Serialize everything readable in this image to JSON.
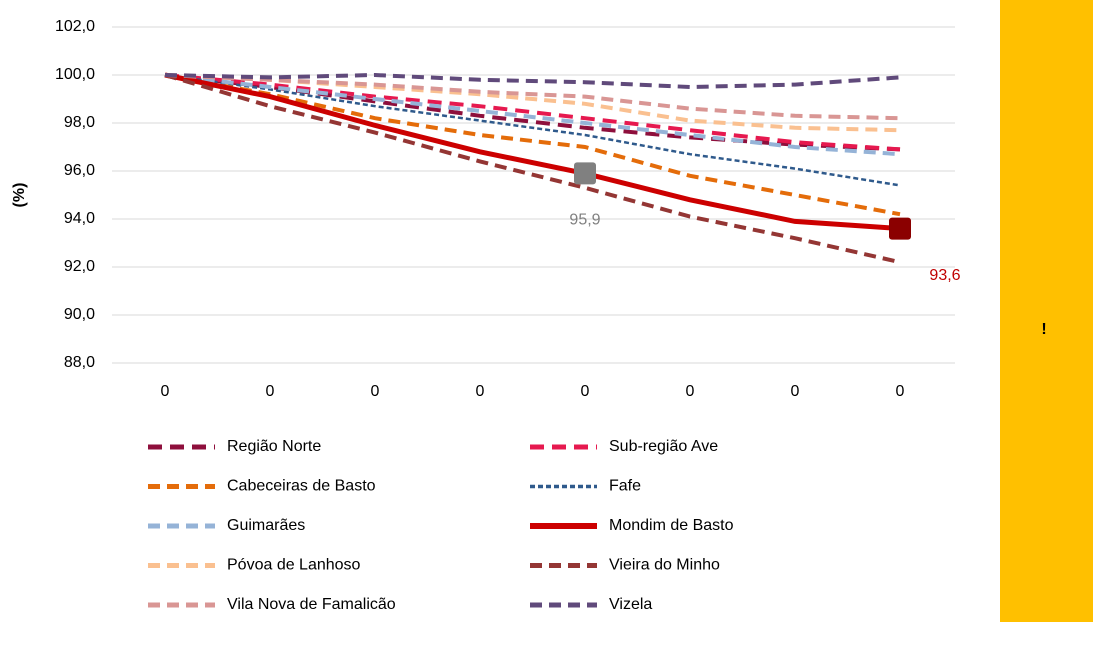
{
  "chart_data": {
    "type": "line",
    "y_label": "(%)",
    "categories": [
      "0",
      "0",
      "0",
      "0",
      "0",
      "0",
      "0",
      "0"
    ],
    "ylim": [
      88,
      102
    ],
    "yticks": [
      {
        "value": 88,
        "label": "88,0"
      },
      {
        "value": 90,
        "label": "90,0"
      },
      {
        "value": 92,
        "label": "92,0"
      },
      {
        "value": 94,
        "label": "94,0"
      },
      {
        "value": 96,
        "label": "96,0"
      },
      {
        "value": 98,
        "label": "98,0"
      },
      {
        "value": 100,
        "label": "100,0"
      },
      {
        "value": 102,
        "label": "102,0"
      }
    ],
    "grid": true,
    "series": [
      {
        "name": "Região Norte",
        "color": "#8E0F3C",
        "values": [
          100,
          99.5,
          98.9,
          98.3,
          97.8,
          97.4,
          97.1,
          96.9
        ]
      },
      {
        "name": "Sub-região Ave",
        "color": "#E6194F",
        "values": [
          100,
          99.6,
          99.1,
          98.7,
          98.2,
          97.7,
          97.2,
          96.9
        ]
      },
      {
        "name": "Cabeceiras de Basto",
        "color": "#E46C0A",
        "values": [
          100,
          99.2,
          98.2,
          97.5,
          97.0,
          95.8,
          95.0,
          94.2
        ]
      },
      {
        "name": "Fafe",
        "color": "#2F5A8C",
        "values": [
          100,
          99.4,
          98.7,
          98.1,
          97.5,
          96.7,
          96.1,
          95.4
        ]
      },
      {
        "name": "Guimarães",
        "color": "#95B3D7",
        "values": [
          100,
          99.5,
          99.0,
          98.5,
          98.0,
          97.5,
          97.0,
          96.7
        ]
      },
      {
        "name": "Mondim de Basto",
        "color": "#CC0000",
        "values": [
          100,
          99.1,
          97.9,
          96.8,
          95.9,
          94.8,
          93.9,
          93.6
        ],
        "value_labels": [
          null,
          null,
          null,
          null,
          "95,9",
          null,
          null,
          "93,6"
        ]
      },
      {
        "name": "Póvoa de Lanhoso",
        "color": "#FAC090",
        "values": [
          100,
          99.8,
          99.5,
          99.2,
          98.8,
          98.1,
          97.8,
          97.7
        ]
      },
      {
        "name": "Vieira do Minho",
        "color": "#943634",
        "values": [
          100,
          98.7,
          97.6,
          96.4,
          95.3,
          94.1,
          93.2,
          92.2
        ]
      },
      {
        "name": "Vila Nova de Famalicão",
        "color": "#D99694",
        "values": [
          100,
          99.8,
          99.6,
          99.3,
          99.1,
          98.6,
          98.3,
          98.2
        ]
      },
      {
        "name": "Vizela",
        "color": "#604A7B",
        "values": [
          100,
          99.9,
          100.0,
          99.8,
          99.7,
          99.5,
          99.6,
          99.9
        ]
      }
    ]
  },
  "side_panel": {
    "text": "!"
  }
}
